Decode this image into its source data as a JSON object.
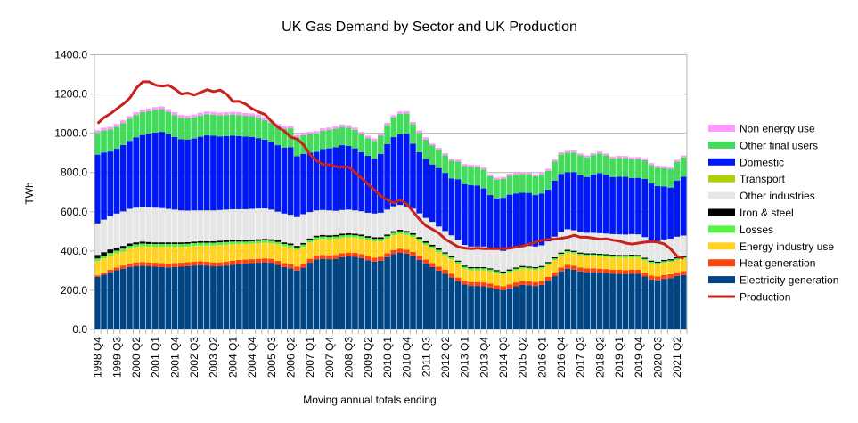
{
  "chart_data": {
    "type": "bar",
    "stacked": true,
    "title": "UK Gas Demand by Sector and UK Production",
    "xlabel": "Moving annual totals ending",
    "ylabel": "TWh",
    "ylim": [
      0,
      1400
    ],
    "yticks": [
      "0.0",
      "200.0",
      "400.0",
      "600.0",
      "800.0",
      "1000.0",
      "1200.0",
      "1400.0"
    ],
    "ytick_values": [
      0,
      200,
      400,
      600,
      800,
      1000,
      1200,
      1400
    ],
    "grid": true,
    "legend_position": "right",
    "x_start": "1998 Q4",
    "x_label_every": 3,
    "categories": [
      "1998 Q4",
      "1999 Q1",
      "1999 Q2",
      "1999 Q3",
      "1999 Q4",
      "2000 Q1",
      "2000 Q2",
      "2000 Q3",
      "2000 Q4",
      "2001 Q1",
      "2001 Q2",
      "2001 Q3",
      "2001 Q4",
      "2002 Q1",
      "2002 Q2",
      "2002 Q3",
      "2002 Q4",
      "2003 Q1",
      "2003 Q2",
      "2003 Q3",
      "2003 Q4",
      "2004 Q1",
      "2004 Q2",
      "2004 Q3",
      "2004 Q4",
      "2005 Q1",
      "2005 Q2",
      "2005 Q3",
      "2005 Q4",
      "2006 Q1",
      "2006 Q2",
      "2006 Q3",
      "2006 Q4",
      "2007 Q1",
      "2007 Q2",
      "2007 Q3",
      "2007 Q4",
      "2008 Q1",
      "2008 Q2",
      "2008 Q3",
      "2008 Q4",
      "2009 Q1",
      "2009 Q2",
      "2009 Q3",
      "2009 Q4",
      "2010 Q1",
      "2010 Q2",
      "2010 Q3",
      "2010 Q4",
      "2011 Q1",
      "2011 Q2",
      "2011 Q3",
      "2011 Q4",
      "2012 Q1",
      "2012 Q2",
      "2012 Q3",
      "2012 Q4",
      "2013 Q1",
      "2013 Q2",
      "2013 Q3",
      "2013 Q4",
      "2014 Q1",
      "2014 Q2",
      "2014 Q3",
      "2014 Q4",
      "2015 Q1",
      "2015 Q2",
      "2015 Q3",
      "2015 Q4",
      "2016 Q1",
      "2016 Q2",
      "2016 Q3",
      "2016 Q4",
      "2017 Q1",
      "2017 Q2",
      "2017 Q3",
      "2017 Q4",
      "2018 Q1",
      "2018 Q2",
      "2018 Q3",
      "2018 Q4",
      "2019 Q1",
      "2019 Q2",
      "2019 Q3",
      "2019 Q4",
      "2020 Q1",
      "2020 Q2",
      "2020 Q3",
      "2020 Q4",
      "2021 Q1",
      "2021 Q2",
      "2021 Q3"
    ],
    "series": [
      {
        "name": "Electricity generation",
        "color": "#004586",
        "values": [
          268,
          280,
          292,
          302,
          310,
          318,
          322,
          324,
          322,
          320,
          318,
          316,
          318,
          320,
          323,
          326,
          328,
          326,
          322,
          322,
          326,
          330,
          334,
          336,
          338,
          340,
          342,
          340,
          330,
          318,
          312,
          300,
          315,
          340,
          356,
          360,
          358,
          360,
          368,
          372,
          370,
          364,
          352,
          346,
          350,
          368,
          385,
          392,
          386,
          375,
          355,
          336,
          318,
          300,
          285,
          265,
          245,
          230,
          222,
          222,
          220,
          214,
          205,
          200,
          210,
          220,
          228,
          225,
          222,
          228,
          248,
          272,
          296,
          310,
          305,
          296,
          292,
          292,
          290,
          288,
          285,
          284,
          283,
          285,
          284,
          270,
          255,
          250,
          258,
          262,
          272,
          278
        ]
      },
      {
        "name": "Heat generation",
        "color": "#ff420e",
        "values": [
          8,
          10,
          12,
          14,
          16,
          18,
          20,
          20,
          20,
          20,
          20,
          20,
          20,
          20,
          20,
          20,
          20,
          20,
          20,
          20,
          20,
          20,
          20,
          20,
          20,
          20,
          20,
          20,
          20,
          20,
          20,
          20,
          20,
          20,
          20,
          20,
          20,
          20,
          20,
          20,
          20,
          20,
          20,
          20,
          20,
          20,
          20,
          20,
          20,
          20,
          20,
          20,
          20,
          20,
          20,
          20,
          20,
          20,
          20,
          20,
          20,
          20,
          20,
          20,
          20,
          20,
          20,
          20,
          20,
          20,
          20,
          20,
          20,
          20,
          20,
          20,
          20,
          20,
          20,
          20,
          20,
          20,
          20,
          20,
          20,
          20,
          20,
          20,
          20,
          20,
          20,
          20
        ]
      },
      {
        "name": "Energy industry use",
        "color": "#ffd320",
        "values": [
          72,
          72,
          72,
          72,
          72,
          76,
          78,
          80,
          80,
          82,
          84,
          86,
          84,
          82,
          80,
          80,
          80,
          82,
          86,
          88,
          86,
          84,
          82,
          80,
          80,
          80,
          80,
          80,
          84,
          86,
          86,
          86,
          86,
          84,
          82,
          82,
          82,
          82,
          80,
          78,
          78,
          80,
          84,
          84,
          80,
          76,
          76,
          76,
          76,
          76,
          76,
          74,
          74,
          74,
          72,
          72,
          70,
          60,
          60,
          60,
          62,
          62,
          62,
          62,
          62,
          62,
          62,
          62,
          62,
          62,
          62,
          62,
          62,
          62,
          62,
          62,
          62,
          62,
          62,
          62,
          62,
          62,
          62,
          62,
          62,
          62,
          62,
          62,
          62,
          62,
          62,
          62
        ]
      },
      {
        "name": "Losses",
        "color": "#56f442",
        "values": [
          14,
          14,
          14,
          14,
          14,
          14,
          14,
          14,
          14,
          14,
          14,
          14,
          14,
          14,
          14,
          14,
          14,
          14,
          14,
          14,
          14,
          14,
          12,
          12,
          12,
          12,
          12,
          12,
          12,
          12,
          12,
          12,
          12,
          12,
          12,
          12,
          12,
          12,
          12,
          12,
          12,
          12,
          12,
          12,
          12,
          12,
          12,
          12,
          12,
          12,
          12,
          12,
          12,
          12,
          10,
          10,
          10,
          10,
          10,
          10,
          10,
          10,
          10,
          8,
          8,
          8,
          8,
          8,
          8,
          8,
          8,
          8,
          8,
          8,
          8,
          8,
          8,
          8,
          8,
          8,
          8,
          8,
          8,
          8,
          8,
          8,
          8,
          8,
          8,
          8,
          8,
          8
        ]
      },
      {
        "name": "Iron & steel",
        "color": "#000000",
        "values": [
          18,
          18,
          18,
          16,
          14,
          12,
          10,
          10,
          10,
          8,
          8,
          8,
          8,
          8,
          8,
          8,
          8,
          8,
          8,
          8,
          8,
          8,
          8,
          8,
          8,
          8,
          8,
          8,
          8,
          8,
          8,
          8,
          8,
          8,
          8,
          8,
          8,
          8,
          8,
          8,
          8,
          8,
          8,
          8,
          8,
          8,
          8,
          8,
          8,
          8,
          8,
          8,
          8,
          8,
          6,
          6,
          6,
          6,
          6,
          6,
          6,
          6,
          6,
          6,
          6,
          6,
          6,
          6,
          6,
          6,
          6,
          6,
          6,
          6,
          6,
          6,
          6,
          6,
          6,
          6,
          6,
          6,
          6,
          6,
          6,
          6,
          6,
          6,
          6,
          6,
          6,
          6
        ]
      },
      {
        "name": "Other industries",
        "color": "#e6e6e6",
        "values": [
          160,
          165,
          168,
          172,
          175,
          176,
          176,
          176,
          176,
          176,
          174,
          170,
          166,
          162,
          160,
          158,
          156,
          156,
          156,
          156,
          156,
          156,
          156,
          156,
          156,
          156,
          154,
          150,
          146,
          146,
          146,
          146,
          146,
          134,
          128,
          126,
          126,
          122,
          120,
          120,
          118,
          118,
          118,
          120,
          124,
          126,
          126,
          126,
          124,
          124,
          120,
          118,
          116,
          110,
          108,
          106,
          104,
          104,
          104,
          104,
          104,
          104,
          104,
          104,
          104,
          104,
          104,
          104,
          104,
          104,
          104,
          104,
          104,
          104,
          104,
          104,
          104,
          104,
          104,
          104,
          104,
          104,
          104,
          104,
          104,
          104,
          104,
          104,
          104,
          104,
          104,
          104
        ]
      },
      {
        "name": "Transport",
        "color": "#aecf00",
        "values": [
          1,
          1,
          1,
          1,
          1,
          1,
          1,
          1,
          1,
          1,
          1,
          1,
          1,
          1,
          1,
          1,
          1,
          1,
          1,
          1,
          1,
          1,
          1,
          1,
          1,
          1,
          1,
          1,
          1,
          1,
          1,
          1,
          1,
          1,
          1,
          1,
          1,
          1,
          1,
          1,
          1,
          1,
          1,
          1,
          1,
          1,
          1,
          1,
          1,
          1,
          1,
          1,
          1,
          1,
          1,
          1,
          1,
          1,
          1,
          1,
          1,
          1,
          1,
          1,
          1,
          1,
          1,
          1,
          1,
          1,
          1,
          1,
          1,
          1,
          1,
          1,
          1,
          1,
          1,
          1,
          1,
          1,
          1,
          1,
          1,
          1,
          1,
          1,
          1,
          1,
          1,
          1
        ]
      },
      {
        "name": "Domestic",
        "color": "#0018f5",
        "values": [
          350,
          342,
          330,
          330,
          338,
          346,
          358,
          366,
          374,
          382,
          388,
          380,
          370,
          362,
          362,
          366,
          375,
          382,
          380,
          374,
          374,
          374,
          372,
          370,
          366,
          358,
          350,
          344,
          338,
          336,
          344,
          310,
          306,
          302,
          298,
          310,
          316,
          324,
          330,
          324,
          316,
          300,
          290,
          280,
          300,
          334,
          352,
          360,
          370,
          330,
          312,
          300,
          292,
          298,
          296,
          290,
          310,
          310,
          312,
          310,
          296,
          268,
          260,
          270,
          276,
          272,
          268,
          270,
          262,
          264,
          264,
          286,
          296,
          290,
          296,
          290,
          284,
          296,
          306,
          300,
          290,
          294,
          294,
          286,
          288,
          296,
          288,
          280,
          270,
          260,
          286,
          300
        ]
      },
      {
        "name": "Other final users",
        "color": "#43dc5a",
        "values": [
          110,
          112,
          112,
          112,
          112,
          112,
          114,
          116,
          116,
          116,
          116,
          114,
          112,
          110,
          108,
          108,
          108,
          108,
          108,
          108,
          108,
          108,
          108,
          106,
          106,
          104,
          100,
          98,
          96,
          96,
          96,
          96,
          96,
          94,
          94,
          94,
          94,
          94,
          94,
          94,
          94,
          92,
          90,
          90,
          92,
          96,
          100,
          104,
          104,
          100,
          98,
          98,
          96,
          92,
          90,
          90,
          90,
          92,
          94,
          94,
          96,
          96,
          96,
          96,
          96,
          96,
          96,
          96,
          96,
          96,
          96,
          98,
          100,
          100,
          100,
          100,
          100,
          100,
          100,
          98,
          96,
          96,
          96,
          96,
          96,
          96,
          94,
          94,
          94,
          94,
          96,
          98
        ]
      },
      {
        "name": "Non energy use",
        "color": "#ff99ff",
        "values": [
          14,
          14,
          14,
          14,
          14,
          14,
          14,
          14,
          14,
          14,
          14,
          14,
          14,
          14,
          14,
          14,
          14,
          14,
          14,
          14,
          14,
          14,
          14,
          14,
          14,
          14,
          14,
          12,
          12,
          12,
          12,
          12,
          12,
          12,
          12,
          12,
          12,
          12,
          12,
          12,
          12,
          12,
          12,
          12,
          12,
          12,
          12,
          12,
          12,
          12,
          12,
          12,
          10,
          10,
          10,
          10,
          10,
          10,
          10,
          10,
          10,
          10,
          10,
          10,
          10,
          10,
          10,
          10,
          10,
          10,
          10,
          10,
          10,
          10,
          10,
          10,
          10,
          10,
          10,
          10,
          10,
          10,
          10,
          10,
          10,
          10,
          10,
          10,
          10,
          10,
          10,
          10
        ]
      }
    ],
    "line_series": {
      "name": "Production",
      "color": "#c9211e",
      "values": [
        1050,
        1080,
        1100,
        1125,
        1150,
        1180,
        1230,
        1262,
        1262,
        1245,
        1240,
        1245,
        1225,
        1200,
        1205,
        1195,
        1208,
        1222,
        1212,
        1220,
        1200,
        1162,
        1162,
        1148,
        1125,
        1108,
        1095,
        1060,
        1030,
        1010,
        980,
        970,
        940,
        890,
        860,
        840,
        840,
        830,
        828,
        828,
        800,
        770,
        740,
        710,
        680,
        660,
        645,
        660,
        640,
        600,
        560,
        528,
        510,
        490,
        460,
        440,
        420,
        415,
        412,
        415,
        412,
        412,
        412,
        412,
        415,
        420,
        425,
        435,
        445,
        455,
        460,
        460,
        465,
        470,
        480,
        470,
        470,
        465,
        460,
        462,
        455,
        450,
        440,
        435,
        440,
        445,
        448,
        445,
        435,
        410,
        372,
        362
      ]
    },
    "legend": [
      "Non energy use",
      "Other final users",
      "Domestic",
      "Transport",
      "Other industries",
      "Iron & steel",
      "Losses",
      "Energy industry use",
      "Heat generation",
      "Electricity generation",
      "Production"
    ]
  }
}
